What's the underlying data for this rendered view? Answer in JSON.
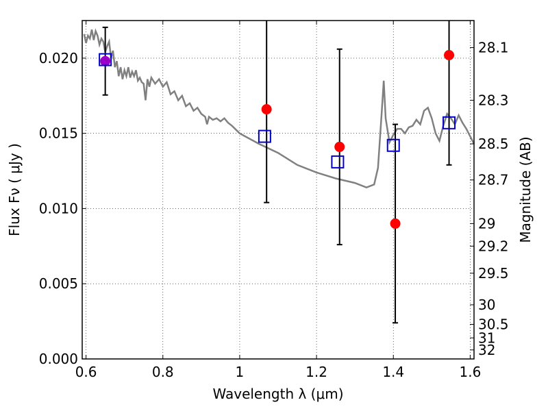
{
  "chart_data": {
    "type": "scatter",
    "xlabel": "Wavelength  λ (μm)",
    "ylabel": "Flux  Fν  ( μJy )",
    "ylabel_right": "Magnitude (AB)",
    "xlim": [
      0.59,
      1.61
    ],
    "ylim": [
      0.0,
      0.0225
    ],
    "grid": true,
    "x_ticks": [
      0.6,
      0.8,
      1.0,
      1.2,
      1.4,
      1.6
    ],
    "x_tick_labels": [
      "0.6",
      "0.8",
      "1",
      "1.2",
      "1.4",
      "1.6"
    ],
    "y_ticks": [
      0.0,
      0.005,
      0.01,
      0.015,
      0.02
    ],
    "y_tick_labels": [
      "0.000",
      "0.005",
      "0.010",
      "0.015",
      "0.020"
    ],
    "mag_ticks": [
      {
        "label": "28.1",
        "flux": 0.0207
      },
      {
        "label": "28.3",
        "flux": 0.0172
      },
      {
        "label": "28.5",
        "flux": 0.0143
      },
      {
        "label": "28.7",
        "flux": 0.0119
      },
      {
        "label": "29",
        "flux": 0.009
      },
      {
        "label": "29.2",
        "flux": 0.0075
      },
      {
        "label": "29.5",
        "flux": 0.0057
      },
      {
        "label": "30",
        "flux": 0.0036
      },
      {
        "label": "30.5",
        "flux": 0.0023
      },
      {
        "label": "31",
        "flux": 0.0014
      },
      {
        "label": "32",
        "flux": 0.0006
      }
    ],
    "observed": [
      {
        "x": 0.65,
        "y": 0.0198,
        "err": 0.00225,
        "color": "#9b00c8"
      },
      {
        "x": 1.07,
        "y": 0.0166,
        "err": 0.0062,
        "color": "#ff0000"
      },
      {
        "x": 1.26,
        "y": 0.0141,
        "err": 0.0065,
        "color": "#ff0000"
      },
      {
        "x": 1.405,
        "y": 0.009,
        "err": 0.0066,
        "color": "#ff0000"
      },
      {
        "x": 1.545,
        "y": 0.0202,
        "err": 0.0073,
        "color": "#ff0000"
      }
    ],
    "model_bands": [
      {
        "x": 0.65,
        "y": 0.0199
      },
      {
        "x": 1.065,
        "y": 0.0148
      },
      {
        "x": 1.255,
        "y": 0.0131
      },
      {
        "x": 1.4,
        "y": 0.0142
      },
      {
        "x": 1.545,
        "y": 0.0157
      }
    ],
    "spectrum": {
      "color": "#808080",
      "x": [
        0.595,
        0.6,
        0.605,
        0.61,
        0.615,
        0.62,
        0.625,
        0.63,
        0.635,
        0.64,
        0.645,
        0.65,
        0.655,
        0.66,
        0.665,
        0.67,
        0.675,
        0.68,
        0.685,
        0.69,
        0.695,
        0.7,
        0.705,
        0.71,
        0.715,
        0.72,
        0.725,
        0.73,
        0.735,
        0.74,
        0.745,
        0.75,
        0.755,
        0.76,
        0.765,
        0.77,
        0.78,
        0.79,
        0.8,
        0.81,
        0.82,
        0.83,
        0.84,
        0.85,
        0.86,
        0.87,
        0.88,
        0.89,
        0.9,
        0.91,
        0.915,
        0.92,
        0.93,
        0.94,
        0.95,
        0.96,
        0.97,
        0.98,
        1.0,
        1.05,
        1.1,
        1.15,
        1.2,
        1.25,
        1.3,
        1.33,
        1.35,
        1.36,
        1.37,
        1.375,
        1.38,
        1.39,
        1.4,
        1.41,
        1.42,
        1.43,
        1.44,
        1.45,
        1.46,
        1.47,
        1.48,
        1.49,
        1.5,
        1.51,
        1.52,
        1.53,
        1.54,
        1.55,
        1.56,
        1.57,
        1.58,
        1.59,
        1.6,
        1.61
      ],
      "y": [
        0.0216,
        0.021,
        0.0215,
        0.0213,
        0.0219,
        0.0212,
        0.0218,
        0.0215,
        0.0209,
        0.0213,
        0.0211,
        0.0204,
        0.0208,
        0.0211,
        0.02,
        0.0205,
        0.0194,
        0.0198,
        0.0188,
        0.0194,
        0.0186,
        0.0192,
        0.0188,
        0.0194,
        0.0187,
        0.0191,
        0.0188,
        0.0192,
        0.0185,
        0.0187,
        0.0184,
        0.0183,
        0.0172,
        0.0186,
        0.0181,
        0.0187,
        0.0183,
        0.0186,
        0.0181,
        0.0184,
        0.0176,
        0.0178,
        0.0172,
        0.0175,
        0.0168,
        0.017,
        0.0165,
        0.0167,
        0.0163,
        0.0161,
        0.0156,
        0.0161,
        0.0159,
        0.016,
        0.0158,
        0.016,
        0.0157,
        0.0155,
        0.015,
        0.0143,
        0.0137,
        0.0129,
        0.0124,
        0.012,
        0.0117,
        0.0114,
        0.0116,
        0.0127,
        0.0165,
        0.0185,
        0.016,
        0.0144,
        0.0149,
        0.0153,
        0.0153,
        0.015,
        0.0154,
        0.0155,
        0.0159,
        0.0156,
        0.0165,
        0.0167,
        0.016,
        0.015,
        0.0145,
        0.0155,
        0.0163,
        0.016,
        0.0156,
        0.0162,
        0.0157,
        0.0153,
        0.0148,
        0.0143
      ]
    }
  }
}
